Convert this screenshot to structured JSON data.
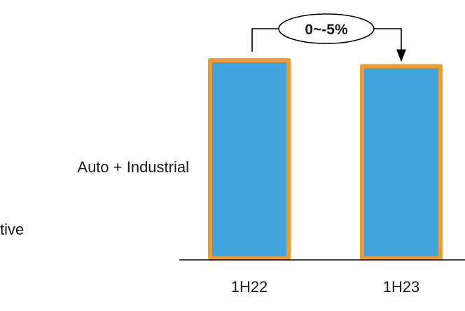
{
  "chart_data": {
    "type": "bar",
    "categories": [
      "1H22",
      "1H23"
    ],
    "values": [
      100,
      97
    ],
    "ylim": [
      0,
      100
    ],
    "grid": false,
    "annotation": "0~-5%",
    "row_labels": [
      "Auto + Industrial",
      "tive"
    ],
    "colors": {
      "bar_fill": "#41A4DD",
      "bar_border": "#F09C2A",
      "baseline": "#000000",
      "text": "#1a1a1a"
    }
  }
}
